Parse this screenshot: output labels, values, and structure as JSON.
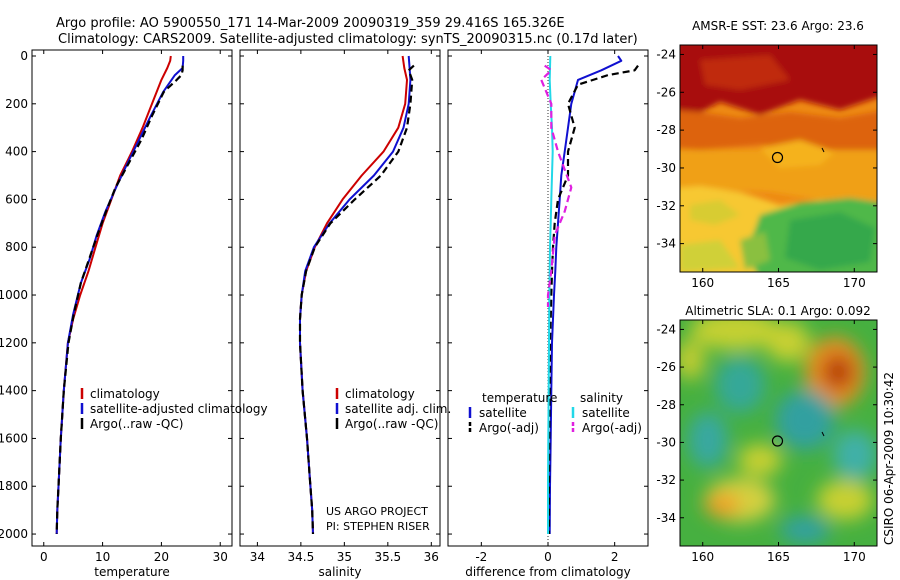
{
  "header": {
    "line1": "Argo profile: AO 5900550_171 14-Mar-2009 20090319_359 29.416S 165.326E",
    "line2": "Climatology: CARS2009. Satellite-adjusted climatology: synTS_20090315.nc (0.17d later)"
  },
  "side_text": "CSIRO 06-Apr-2009 10:30:42",
  "credit": {
    "line1": "US ARGO PROJECT",
    "line2": "PI: STEPHEN RISER"
  },
  "colors": {
    "climatology": "#cc0000",
    "satellite": "#1010d0",
    "argo": "#000000",
    "cyan": "#22d8e8",
    "magenta": "#e020e0"
  },
  "chart_data": [
    {
      "type": "line",
      "id": "temperature",
      "xlabel": "temperature",
      "ylabel": "",
      "xlim": [
        -2,
        32
      ],
      "ylim": [
        0,
        2050
      ],
      "y_reversed": true,
      "xticks": [
        0,
        10,
        20,
        30
      ],
      "yticks": [
        0,
        200,
        400,
        600,
        800,
        1000,
        1200,
        1400,
        1600,
        1800,
        2000
      ],
      "legend": [
        "climatology",
        "satellite-adjusted climatology",
        "Argo(..raw -QC)"
      ],
      "series": [
        {
          "name": "climatology",
          "color": "#cc0000",
          "dash": "solid",
          "x": [
            21.6,
            21.5,
            21.0,
            20.0,
            18.4,
            16.8,
            15.0,
            13.0,
            11.5,
            10.0,
            8.8,
            7.6,
            6.2,
            5.0,
            4.1,
            3.4,
            2.9,
            2.5,
            2.3,
            2.2
          ],
          "y": [
            0,
            20,
            50,
            100,
            200,
            300,
            400,
            500,
            600,
            700,
            800,
            900,
            1000,
            1100,
            1200,
            1400,
            1600,
            1800,
            1900,
            2000
          ]
        },
        {
          "name": "satellite-adjusted climatology",
          "color": "#1010d0",
          "dash": "solid",
          "x": [
            23.7,
            23.7,
            23.6,
            22.3,
            20.3,
            18.2,
            16.2,
            14.2,
            12.3,
            10.5,
            9.0,
            7.8,
            6.3,
            5.0,
            4.1,
            3.4,
            2.9,
            2.5,
            2.3,
            2.2
          ],
          "y": [
            0,
            20,
            50,
            80,
            150,
            250,
            350,
            450,
            550,
            650,
            750,
            850,
            950,
            1080,
            1200,
            1400,
            1600,
            1800,
            1900,
            2000
          ]
        },
        {
          "name": "Argo(..raw -QC)",
          "color": "#000000",
          "dash": "7,4",
          "x": [
            23.6,
            23.6,
            23.4,
            22.6,
            20.4,
            18.4,
            16.6,
            14.4,
            12.2,
            10.6,
            9.1,
            7.7,
            6.3,
            5.1,
            4.2,
            3.4,
            2.9,
            2.5,
            2.3,
            2.2
          ],
          "y": [
            40,
            60,
            80,
            100,
            150,
            250,
            350,
            450,
            550,
            650,
            750,
            850,
            950,
            1080,
            1200,
            1400,
            1600,
            1800,
            1900,
            2000
          ]
        }
      ]
    },
    {
      "type": "line",
      "id": "salinity",
      "xlabel": "salinity",
      "ylabel": "",
      "xlim": [
        33.8,
        36.1
      ],
      "ylim": [
        0,
        2050
      ],
      "y_reversed": true,
      "xticks": [
        34,
        34.5,
        35,
        35.5,
        36
      ],
      "yticks": [],
      "legend": [
        "climatology",
        "satellite adj. clim.",
        "Argo(..raw -QC)"
      ],
      "series": [
        {
          "name": "climatology",
          "color": "#cc0000",
          "dash": "solid",
          "x": [
            35.67,
            35.69,
            35.72,
            35.7,
            35.62,
            35.45,
            35.2,
            34.98,
            34.8,
            34.66,
            34.56,
            34.51,
            34.49,
            34.49,
            34.52,
            34.57,
            34.61,
            34.63,
            34.64
          ],
          "y": [
            0,
            50,
            100,
            200,
            300,
            400,
            500,
            600,
            700,
            800,
            900,
            1000,
            1100,
            1200,
            1400,
            1600,
            1800,
            1900,
            2000
          ]
        },
        {
          "name": "satellite adj. clim.",
          "color": "#1010d0",
          "dash": "solid",
          "x": [
            35.74,
            35.75,
            35.76,
            35.74,
            35.68,
            35.56,
            35.34,
            35.06,
            34.83,
            34.65,
            34.55,
            34.51,
            34.49,
            34.49,
            34.52,
            34.57,
            34.61,
            34.63,
            34.64
          ],
          "y": [
            0,
            50,
            100,
            200,
            300,
            400,
            500,
            600,
            700,
            800,
            900,
            1000,
            1100,
            1200,
            1400,
            1600,
            1800,
            1900,
            2000
          ]
        },
        {
          "name": "Argo(..raw -QC)",
          "color": "#000000",
          "dash": "7,4",
          "x": [
            35.8,
            35.74,
            35.78,
            35.76,
            35.72,
            35.62,
            35.42,
            35.12,
            34.84,
            34.66,
            34.56,
            34.51,
            34.49,
            34.49,
            34.52,
            34.57,
            34.61,
            34.63,
            34.64
          ],
          "y": [
            40,
            60,
            100,
            200,
            300,
            400,
            500,
            600,
            700,
            800,
            900,
            1000,
            1100,
            1200,
            1400,
            1600,
            1800,
            1900,
            2000
          ]
        }
      ]
    },
    {
      "type": "line",
      "id": "difference",
      "xlabel": "difference from climatology",
      "ylabel": "",
      "xlim": [
        -3,
        3
      ],
      "ylim": [
        0,
        2050
      ],
      "y_reversed": true,
      "xticks": [
        -2,
        0,
        2
      ],
      "yticks": [],
      "legend_left_title": "temperature",
      "legend_right_title": "salinity",
      "legend": [
        "satellite",
        "Argo(-adj)",
        "satellite",
        "Argo(-adj)"
      ],
      "series": [
        {
          "name": "temperature satellite",
          "color": "#1010d0",
          "dash": "solid",
          "x": [
            2.1,
            2.2,
            1.6,
            0.9,
            0.7,
            0.6,
            0.5,
            0.4,
            0.35,
            0.3,
            0.25,
            0.22,
            0.18,
            0.15,
            0.12,
            0.1,
            0.08,
            0.06,
            0.05
          ],
          "y": [
            0,
            20,
            60,
            100,
            200,
            300,
            400,
            500,
            600,
            700,
            800,
            900,
            1000,
            1100,
            1200,
            1400,
            1600,
            1800,
            2000
          ]
        },
        {
          "name": "temperature Argo(-adj)",
          "color": "#000000",
          "dash": "7,4",
          "x": [
            2.7,
            2.6,
            1.8,
            0.9,
            0.6,
            0.8,
            0.6,
            0.6,
            0.3,
            0.2,
            0.15,
            0.12,
            0.1,
            0.08,
            0.06,
            0.05,
            0.04,
            0.03,
            0.03
          ],
          "y": [
            40,
            60,
            80,
            120,
            200,
            300,
            400,
            500,
            600,
            700,
            800,
            900,
            1000,
            1100,
            1200,
            1400,
            1600,
            1800,
            2000
          ]
        },
        {
          "name": "salinity satellite",
          "color": "#22d8e8",
          "dash": "solid",
          "x": [
            0.07,
            0.06,
            0.05,
            0.08,
            0.12,
            0.14,
            0.12,
            0.1,
            0.08,
            0.06,
            0.05,
            0.04,
            0.03,
            0.02,
            0.01,
            0.0,
            0.0
          ],
          "y": [
            0,
            50,
            100,
            200,
            300,
            400,
            500,
            600,
            700,
            800,
            900,
            1000,
            1200,
            1400,
            1600,
            1800,
            2000
          ]
        },
        {
          "name": "salinity Argo(-adj)",
          "color": "#e020e0",
          "dash": "7,4",
          "x": [
            -0.1,
            0.1,
            -0.2,
            0.1,
            0.1,
            0.3,
            0.7,
            0.5,
            0.2,
            0.1,
            0.0,
            0.0
          ],
          "y": [
            40,
            60,
            100,
            200,
            300,
            400,
            550,
            650,
            750,
            900,
            1000,
            1050
          ]
        }
      ]
    },
    {
      "type": "heatmap",
      "id": "sst_map",
      "title": "AMSR-E SST: 23.6 Argo: 23.6",
      "xticks": [
        160,
        165,
        170
      ],
      "yticks": [
        -24,
        -26,
        -28,
        -30,
        -32,
        -34
      ],
      "xlim": [
        158.5,
        171.5
      ],
      "ylim": [
        -35.5,
        -23.5
      ],
      "marker": {
        "lon": 165.326,
        "lat": -29.416
      }
    },
    {
      "type": "heatmap",
      "id": "sla_map",
      "title": "Altimetric SLA: 0.1 Argo: 0.092",
      "xticks": [
        160,
        165,
        170
      ],
      "yticks": [
        -24,
        -26,
        -28,
        -30,
        -32,
        -34
      ],
      "xlim": [
        158.5,
        171.5
      ],
      "ylim": [
        -35.5,
        -23.5
      ],
      "marker": {
        "lon": 165.326,
        "lat": -29.416
      }
    }
  ]
}
